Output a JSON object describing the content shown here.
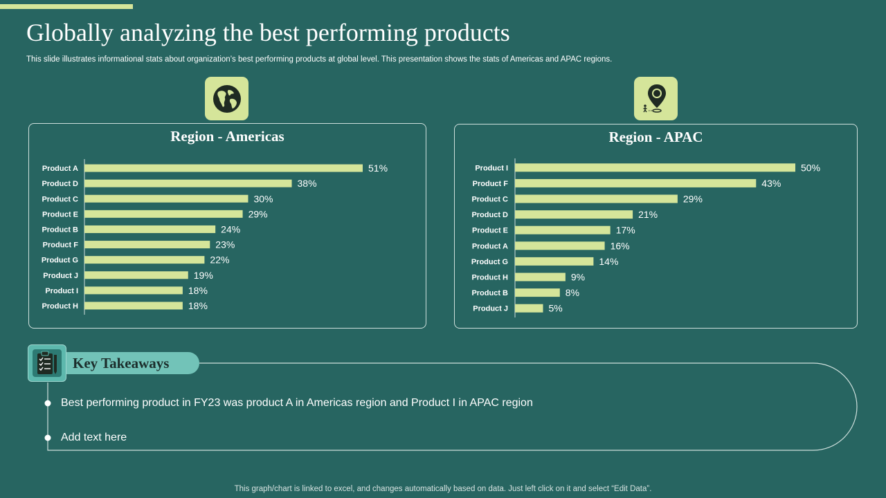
{
  "page": {
    "title": "Globally analyzing the best performing products",
    "subtitle": "This slide illustrates informational stats about organization’s best performing products at global level. This presentation shows the stats of Americas and APAC  regions.",
    "footer": "This graph/chart is linked to excel,  and changes automatically based on data. Just left click on it and select “Edit Data”."
  },
  "colors": {
    "background": "#276561",
    "accent": "#d5e59a",
    "bar": "#d5e59a",
    "pill": "#72c3b8"
  },
  "icons": {
    "americas": "globe-icon",
    "apac": "location-pin-icon",
    "takeaways": "clipboard-checklist-icon"
  },
  "chart_data": [
    {
      "type": "bar",
      "orientation": "horizontal",
      "title": "Region - Americas",
      "categories": [
        "Product A",
        "Product D",
        "Product C",
        "Product E",
        "Product B",
        "Product F",
        "Product G",
        "Product J",
        "Product I",
        "Product H"
      ],
      "values": [
        51,
        38,
        30,
        29,
        24,
        23,
        22,
        19,
        18,
        18
      ],
      "value_suffix": "%",
      "xlim": [
        0,
        60
      ],
      "xlabel": "",
      "ylabel": ""
    },
    {
      "type": "bar",
      "orientation": "horizontal",
      "title": "Region - APAC",
      "categories": [
        "Product I",
        "Product F",
        "Product C",
        "Product D",
        "Product E",
        "Product A",
        "Product G",
        "Product H",
        "Product B",
        "Product J"
      ],
      "values": [
        50,
        43,
        29,
        21,
        17,
        16,
        14,
        9,
        8,
        5
      ],
      "value_suffix": "%",
      "xlim": [
        0,
        60
      ],
      "xlabel": "",
      "ylabel": ""
    }
  ],
  "takeaways": {
    "heading": "Key Takeaways",
    "items": [
      "Best performing product in FY23 was product A in Americas region and Product I in APAC region",
      "Add text here"
    ]
  }
}
